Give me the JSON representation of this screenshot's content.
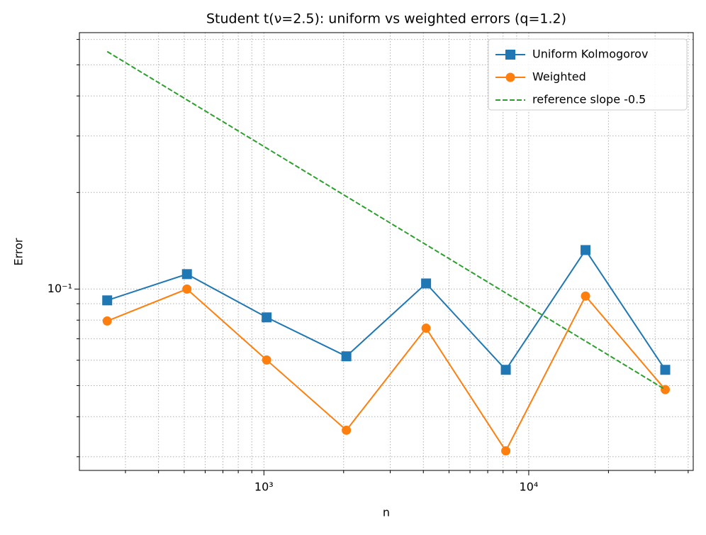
{
  "chart_data": {
    "type": "line",
    "title": "Student t(ν=2.5): uniform vs weighted errors (q=1.2)",
    "x_label": "n",
    "y_label": "Error",
    "x": [
      256,
      512,
      1024,
      2048,
      4096,
      8192,
      16384,
      32768
    ],
    "series": [
      {
        "name": "Uniform Kolmogorov",
        "color": "#1f77b4",
        "marker": "square",
        "linestyle": "solid",
        "values": [
          0.0922,
          0.1113,
          0.0816,
          0.0617,
          0.1041,
          0.056,
          0.1323,
          0.056
        ]
      },
      {
        "name": "Weighted",
        "color": "#ff7f0e",
        "marker": "circle",
        "linestyle": "solid",
        "values": [
          0.0795,
          0.1,
          0.0601,
          0.0363,
          0.0755,
          0.0313,
          0.0951,
          0.0486
        ]
      },
      {
        "name": "reference slope -0.5",
        "color": "#2ca02c",
        "marker": "none",
        "linestyle": "dashed",
        "values": [
          0.55,
          0.3889,
          0.275,
          0.1944,
          0.1375,
          0.0972,
          0.0688,
          0.0486
        ]
      }
    ],
    "xscale": "log",
    "yscale": "log",
    "xlim": [
      201,
      41800
    ],
    "ylim": [
      0.0272,
      0.63
    ],
    "xticks": [
      {
        "value": 1000,
        "label": "10³"
      },
      {
        "value": 10000,
        "label": "10⁴"
      }
    ],
    "yticks": [
      {
        "value": 0.1,
        "label": "10⁻¹"
      }
    ],
    "minor_xticks": [
      300,
      400,
      500,
      600,
      700,
      800,
      900,
      2000,
      3000,
      4000,
      5000,
      6000,
      7000,
      8000,
      9000,
      20000,
      30000,
      40000
    ],
    "minor_yticks": [
      0.03,
      0.04,
      0.05,
      0.06,
      0.07,
      0.08,
      0.09,
      0.2,
      0.3,
      0.4,
      0.5,
      0.6
    ],
    "grid": true,
    "legend": "upper right"
  }
}
